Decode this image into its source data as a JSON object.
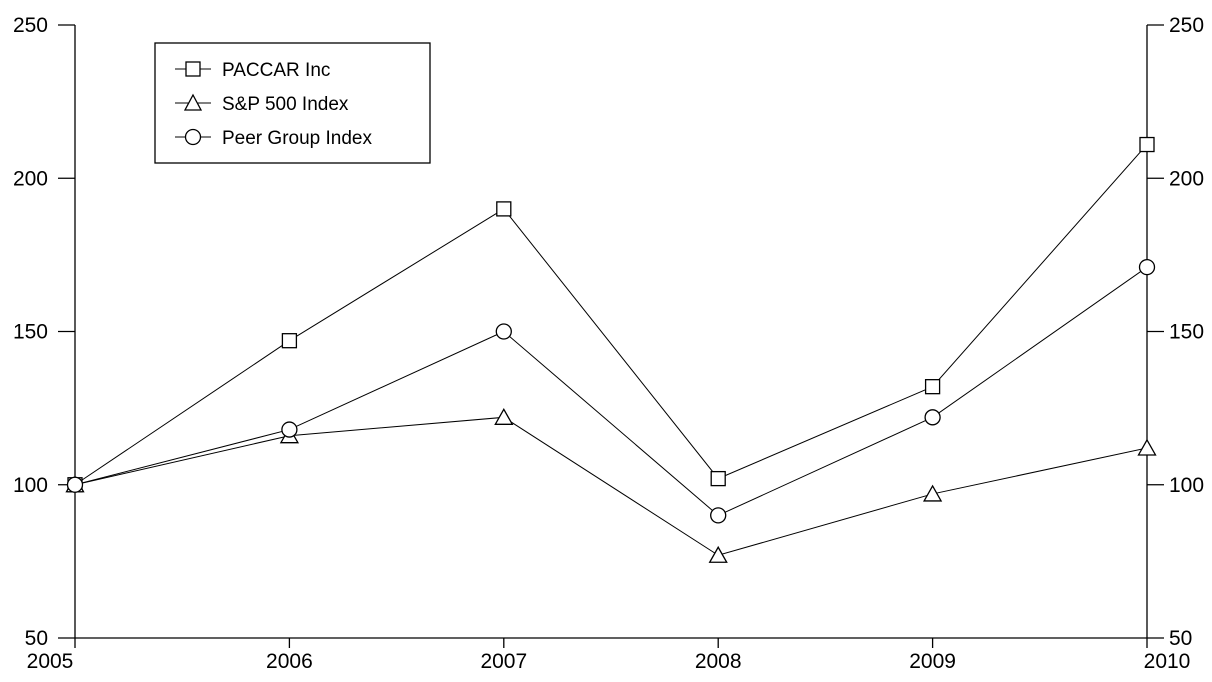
{
  "chart_data": {
    "type": "line",
    "title": "",
    "xlabel": "",
    "ylabel": "",
    "categories": [
      "2005",
      "2006",
      "2007",
      "2008",
      "2009",
      "2010"
    ],
    "ylim": [
      50,
      250
    ],
    "yticks": [
      50,
      100,
      150,
      200,
      250
    ],
    "right_axis_mirrored": true,
    "grid": false,
    "legend_position": "top-left",
    "series": [
      {
        "name": "PACCAR Inc",
        "marker": "square",
        "values": [
          100,
          147,
          190,
          102,
          132,
          211
        ]
      },
      {
        "name": "S&P 500 Index",
        "marker": "triangle",
        "values": [
          100,
          116,
          122,
          77,
          97,
          112
        ]
      },
      {
        "name": "Peer Group Index",
        "marker": "circle",
        "values": [
          100,
          118,
          150,
          90,
          122,
          171
        ]
      }
    ]
  }
}
